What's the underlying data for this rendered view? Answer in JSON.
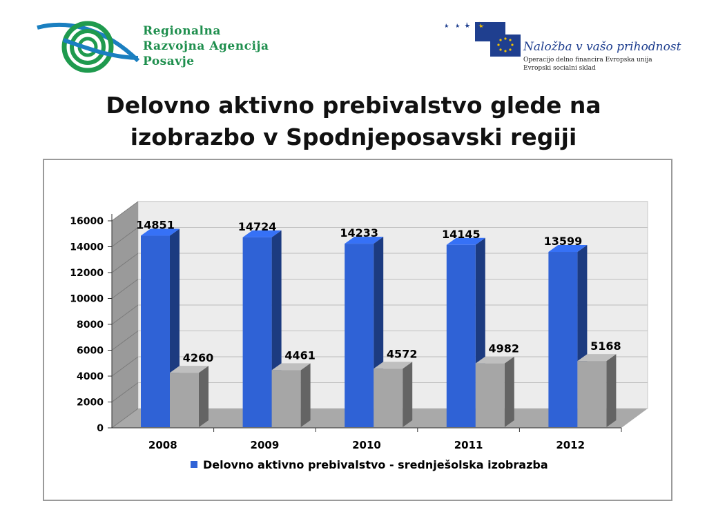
{
  "logos": {
    "left": {
      "lines": [
        "Regionalna",
        "Razvojna Agencija",
        "Posavje"
      ]
    },
    "right": {
      "slogan": "Naložba v vašo prihodnost",
      "line2": "Operacijo delno financira Evropska unija",
      "line3": "Evropski socialni sklad"
    }
  },
  "slide": {
    "title_line1": "Delovno aktivno prebivalstvo glede na",
    "title_line2": "izobrazbo v Spodnjeposavski regiji"
  },
  "colors": {
    "series1": "#2f62d6",
    "series2": "#a6a6a6"
  },
  "chart_data": {
    "type": "bar",
    "categories": [
      "2008",
      "2009",
      "2010",
      "2011",
      "2012"
    ],
    "series": [
      {
        "name": "Delovno aktivno prebivalstvo - srednješolska izobrazba",
        "values": [
          14851,
          14724,
          14233,
          14145,
          13599
        ]
      },
      {
        "values": [
          4260,
          4461,
          4572,
          4982,
          5168
        ]
      }
    ],
    "ylim": [
      0,
      16000
    ],
    "yticks": [
      "0",
      "2000",
      "4000",
      "6000",
      "8000",
      "10000",
      "12000",
      "14000",
      "16000"
    ],
    "grid": true,
    "legend": "bottom",
    "style": "3d-clustered-column"
  }
}
